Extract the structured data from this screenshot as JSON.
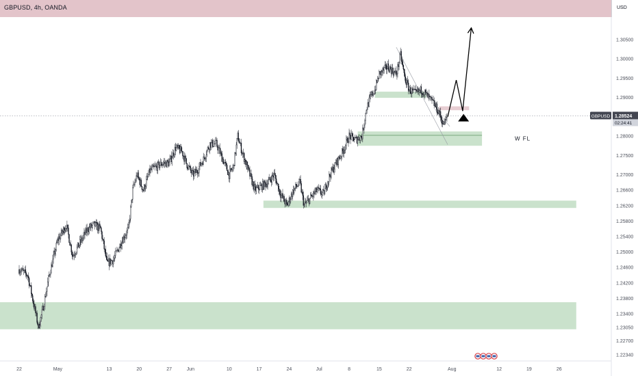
{
  "header": {
    "symbol_title": "GBPUSD, 4h, OANDA",
    "currency": "USD"
  },
  "price_badge": {
    "symbol": "GBPUSD",
    "price": "1.28524",
    "countdown": "02:24:41"
  },
  "annotation": {
    "label": "W FL"
  },
  "colors": {
    "zone_green": "#aed3b1",
    "zone_red": "#e3c4ca",
    "candle": "#131722",
    "price_line": "#9598a1",
    "badge_bg": "#434651",
    "countdown_bg": "#d1d4dc"
  },
  "chart_data": {
    "type": "candlestick",
    "title": "GBPUSD, 4h, OANDA",
    "y_axis": {
      "side": "right",
      "range": [
        1.2218,
        1.3108
      ],
      "tick_labels": [
        "1.30500",
        "1.30000",
        "1.29500",
        "1.29000",
        "1.28000",
        "1.27500",
        "1.27000",
        "1.26600",
        "1.26200",
        "1.25800",
        "1.25400",
        "1.25000",
        "1.24600",
        "1.24200",
        "1.23800",
        "1.23400",
        "1.23050",
        "1.22700",
        "1.22340"
      ],
      "tick_values": [
        1.305,
        1.3,
        1.295,
        1.29,
        1.28,
        1.275,
        1.27,
        1.266,
        1.262,
        1.258,
        1.254,
        1.25,
        1.246,
        1.242,
        1.238,
        1.234,
        1.2305,
        1.227,
        1.2234
      ]
    },
    "x_axis": {
      "tick_labels": [
        "22",
        "May",
        "13",
        "20",
        "27",
        "Jun",
        "10",
        "17",
        "24",
        "Jul",
        "8",
        "15",
        "22",
        "Aug",
        "12",
        "19",
        "26"
      ],
      "tick_days": [
        0,
        9,
        21,
        28,
        35,
        40,
        49,
        56,
        63,
        70,
        77,
        84,
        91,
        101,
        112,
        119,
        126
      ]
    },
    "current_price": 1.28524,
    "price_path": [
      [
        0,
        1.2455
      ],
      [
        2,
        1.244
      ],
      [
        3.5,
        1.236
      ],
      [
        4.5,
        1.2305
      ],
      [
        5.5,
        1.235
      ],
      [
        7,
        1.244
      ],
      [
        9,
        1.253
      ],
      [
        11,
        1.257
      ],
      [
        12.5,
        1.249
      ],
      [
        14,
        1.252
      ],
      [
        16,
        1.256
      ],
      [
        17.5,
        1.257
      ],
      [
        19,
        1.256
      ],
      [
        20.5,
        1.247
      ],
      [
        22,
        1.248
      ],
      [
        24,
        1.253
      ],
      [
        25.5,
        1.256
      ],
      [
        26.5,
        1.266
      ],
      [
        27.5,
        1.27
      ],
      [
        29,
        1.266
      ],
      [
        30.5,
        1.271
      ],
      [
        32,
        1.272
      ],
      [
        33.5,
        1.273
      ],
      [
        35,
        1.273
      ],
      [
        36.5,
        1.277
      ],
      [
        38,
        1.276
      ],
      [
        39,
        1.273
      ],
      [
        40.5,
        1.27
      ],
      [
        41.5,
        1.271
      ],
      [
        43,
        1.274
      ],
      [
        44.5,
        1.278
      ],
      [
        46,
        1.278
      ],
      [
        47.5,
        1.274
      ],
      [
        49,
        1.27
      ],
      [
        50,
        1.272
      ],
      [
        51,
        1.28
      ],
      [
        52,
        1.276
      ],
      [
        53.5,
        1.271
      ],
      [
        55,
        1.266
      ],
      [
        56.5,
        1.267
      ],
      [
        58,
        1.268
      ],
      [
        59.5,
        1.27
      ],
      [
        61,
        1.265
      ],
      [
        62.5,
        1.262
      ],
      [
        64,
        1.266
      ],
      [
        65.5,
        1.268
      ],
      [
        66.5,
        1.262
      ],
      [
        68,
        1.264
      ],
      [
        69.5,
        1.266
      ],
      [
        71,
        1.265
      ],
      [
        72.5,
        1.27
      ],
      [
        74,
        1.273
      ],
      [
        75.5,
        1.276
      ],
      [
        77,
        1.28
      ],
      [
        78.5,
        1.279
      ],
      [
        80,
        1.28
      ],
      [
        81,
        1.287
      ],
      [
        82,
        1.29
      ],
      [
        83,
        1.292
      ],
      [
        84,
        1.296
      ],
      [
        86,
        1.298
      ],
      [
        88,
        1.296
      ],
      [
        89,
        1.301
      ],
      [
        90,
        1.295
      ],
      [
        91,
        1.292
      ],
      [
        92.5,
        1.291
      ],
      [
        94,
        1.292
      ],
      [
        95.5,
        1.29
      ],
      [
        97,
        1.288
      ],
      [
        98,
        1.286
      ],
      [
        99,
        1.283
      ],
      [
        100,
        1.285
      ]
    ],
    "zones": [
      {
        "from_day": -5,
        "to_day": 130,
        "low": 1.23,
        "high": 1.237,
        "color": "green"
      },
      {
        "from_day": 57,
        "to_day": 130,
        "low": 1.2614,
        "high": 1.2633,
        "color": "green"
      },
      {
        "from_day": 79,
        "to_day": 108,
        "low": 1.2775,
        "high": 1.2812,
        "color": "green"
      },
      {
        "from_day": 83,
        "to_day": 95,
        "low": 1.2899,
        "high": 1.2915,
        "color": "green"
      },
      {
        "from_day": 98,
        "to_day": 105,
        "low": 1.2867,
        "high": 1.2877,
        "color": "red"
      }
    ],
    "projection_path": [
      [
        100,
        1.285
      ],
      [
        102,
        1.2945
      ],
      [
        103.5,
        1.2865
      ],
      [
        105.5,
        1.308
      ]
    ],
    "trend_channel": [
      [
        [
          88,
          1.303
        ],
        [
          100,
          1.2778
        ]
      ],
      [
        [
          97,
          1.287
        ],
        [
          100.5,
          1.2825
        ]
      ]
    ],
    "grid": false,
    "legend": "none"
  }
}
